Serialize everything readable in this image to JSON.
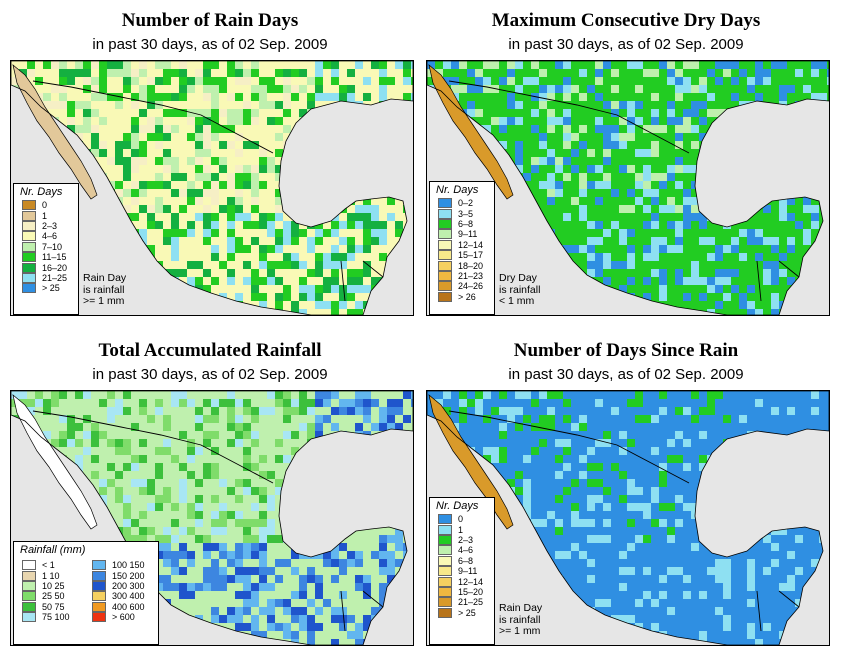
{
  "panels": {
    "rain_days": {
      "title": "Number of Rain Days",
      "subtitle": "in past 30 days, as of  02 Sep. 2009",
      "legend_title": "Nr. Days",
      "legend": [
        {
          "label": "0",
          "color": "#c98a25"
        },
        {
          "label": "1",
          "color": "#e2c89a"
        },
        {
          "label": "2–3",
          "color": "#f6efc5"
        },
        {
          "label": "4–6",
          "color": "#f9f9b6"
        },
        {
          "label": "7–10",
          "color": "#bff0ae"
        },
        {
          "label": "11–15",
          "color": "#22cc22"
        },
        {
          "label": "16–20",
          "color": "#14b040"
        },
        {
          "label": "21–25",
          "color": "#8ee0f2"
        },
        {
          "label": "> 25",
          "color": "#2f8fe2"
        }
      ],
      "note": [
        "Rain Day",
        "is rainfall",
        ">= 1 mm"
      ]
    },
    "dry_days": {
      "title": "Maximum Consecutive Dry Days",
      "subtitle": "in past 30 days, as of  02 Sep. 2009",
      "legend_title": "Nr. Days",
      "legend": [
        {
          "label": "0–2",
          "color": "#2f8fe2"
        },
        {
          "label": "3–5",
          "color": "#8ee0f2"
        },
        {
          "label": "6–8",
          "color": "#22cc22"
        },
        {
          "label": "9–11",
          "color": "#bff0ae"
        },
        {
          "label": "12–14",
          "color": "#f9f9b6"
        },
        {
          "label": "15–17",
          "color": "#f8e98a"
        },
        {
          "label": "18–20",
          "color": "#f5d060"
        },
        {
          "label": "21–23",
          "color": "#f0b840"
        },
        {
          "label": "24–26",
          "color": "#d99a2a"
        },
        {
          "label": "> 26",
          "color": "#b8741a"
        }
      ],
      "note": [
        "Dry Day",
        "is rainfall",
        "< 1 mm"
      ]
    },
    "total_rain": {
      "title": "Total Accumulated Rainfall",
      "subtitle": "in past 30 days, as of  02 Sep. 2009",
      "legend_title": "Rainfall (mm)",
      "legend": [
        {
          "label": "< 1",
          "color": "#ffffff"
        },
        {
          "label": "1   10",
          "color": "#e8d6b0"
        },
        {
          "label": "10   25",
          "color": "#bff0ae"
        },
        {
          "label": "25   50",
          "color": "#7fdc6a"
        },
        {
          "label": "50   75",
          "color": "#3cc03c"
        },
        {
          "label": "75   100",
          "color": "#a8e6f4"
        },
        {
          "label": "100   150",
          "color": "#62b6ef"
        },
        {
          "label": "150   200",
          "color": "#3d86e0"
        },
        {
          "label": "200   300",
          "color": "#1f55cc"
        },
        {
          "label": "300   400",
          "color": "#f5d060"
        },
        {
          "label": "400   600",
          "color": "#f09a22"
        },
        {
          "label": "> 600",
          "color": "#ee3311"
        }
      ]
    },
    "days_since": {
      "title": "Number of Days Since Rain",
      "subtitle": "in past 30 days, as of  02 Sep. 2009",
      "legend_title": "Nr. Days",
      "legend": [
        {
          "label": "0",
          "color": "#2f8fe2"
        },
        {
          "label": "1",
          "color": "#8ee0f2"
        },
        {
          "label": "2–3",
          "color": "#22cc22"
        },
        {
          "label": "4–6",
          "color": "#bff0ae"
        },
        {
          "label": "6–8",
          "color": "#f9f9b6"
        },
        {
          "label": "9–11",
          "color": "#f8e98a"
        },
        {
          "label": "12–14",
          "color": "#f5d060"
        },
        {
          "label": "15–20",
          "color": "#f0b840"
        },
        {
          "label": "21–25",
          "color": "#d99a2a"
        },
        {
          "label": "> 25",
          "color": "#b8741a"
        }
      ],
      "note": [
        "Rain Day",
        "is rainfall",
        ">= 1 mm"
      ]
    }
  },
  "colors": {
    "ocean": "#e6e6e6",
    "border": "#000000"
  }
}
